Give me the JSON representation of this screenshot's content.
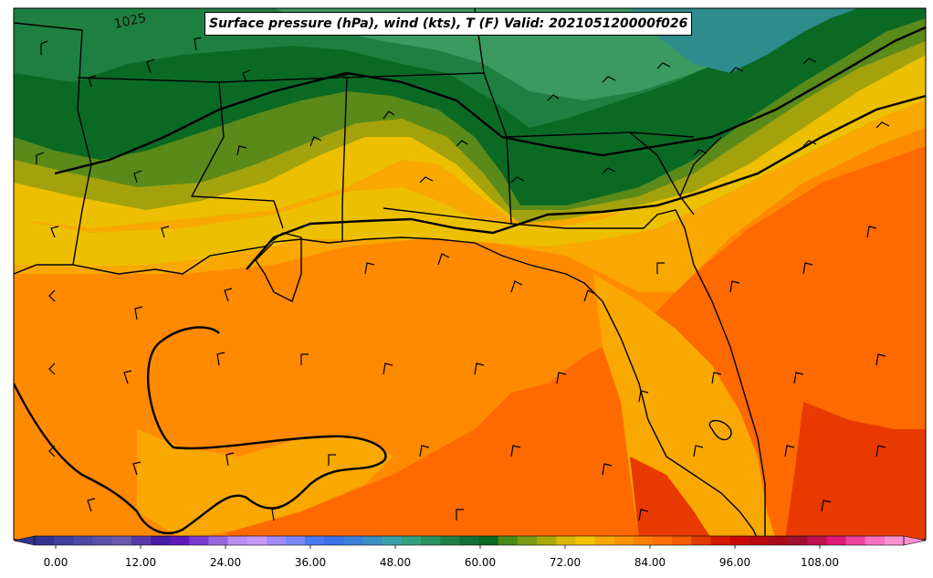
{
  "title": "Surface pressure (hPa), wind (kts), T (F) Valid: 202105120000f026",
  "isobar_labels": [
    "1025"
  ],
  "colorbar": {
    "tick_labels": [
      "0.00",
      "12.00",
      "24.00",
      "36.00",
      "48.00",
      "60.00",
      "72.00",
      "84.00",
      "96.00",
      "108.00"
    ],
    "colors": [
      "#33338f",
      "#3f3f9f",
      "#4a4aa6",
      "#5a52a8",
      "#6a58ac",
      "#5a3aa8",
      "#4b1aa8",
      "#5e1ab8",
      "#7a3ad0",
      "#9a66e0",
      "#b88cf0",
      "#c89af4",
      "#a08cf4",
      "#7a88f8",
      "#4a78f0",
      "#3a70e8",
      "#3a80d8",
      "#3a8ec0",
      "#3aa0a8",
      "#34a080",
      "#2a9060",
      "#1e8048",
      "#157036",
      "#0a6a24",
      "#4a8a1a",
      "#7c9a14",
      "#a8a80a",
      "#d8b808",
      "#f2c400",
      "#f7a800",
      "#fa9400",
      "#ff7e00",
      "#ff6e00",
      "#f45a00",
      "#e23a00",
      "#d21a00",
      "#c80a0a",
      "#b80a10",
      "#a80a1a",
      "#a01030",
      "#c01050",
      "#e01a78",
      "#f040a0",
      "#f870c0",
      "#fa90d0"
    ]
  },
  "fill_colors": {
    "teal": "#2f8c8c",
    "green_light": "#3a9a60",
    "green_mid": "#1e8040",
    "green_dark": "#0a6a24",
    "olive": "#5a8a1a",
    "olive_yellow": "#a4a20c",
    "yellow": "#ecc000",
    "orange_light": "#f8a800",
    "orange": "#ff8a00",
    "orange_deep": "#ff6a00",
    "red_orange": "#e83a00"
  }
}
